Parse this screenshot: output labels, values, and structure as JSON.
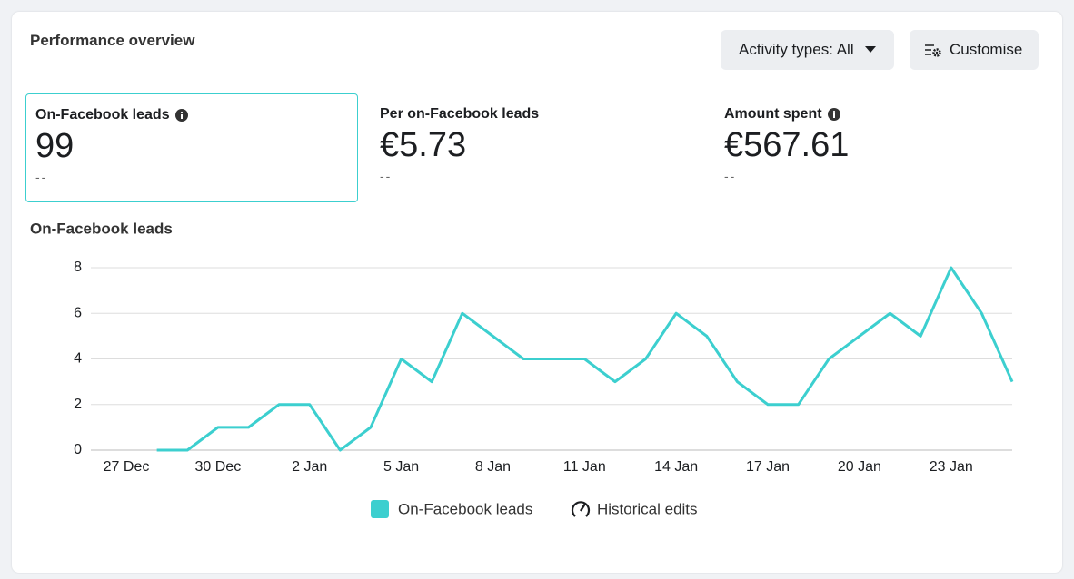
{
  "header": {
    "title": "Performance overview",
    "filter_button": "Activity types: All",
    "customise_button": "Customise"
  },
  "metrics": [
    {
      "label": "On-Facebook leads",
      "value": "99",
      "comparison": "--"
    },
    {
      "label": "Per on-Facebook leads",
      "value": "€5.73",
      "comparison": "--"
    },
    {
      "label": "Amount spent",
      "value": "€567.61",
      "comparison": "--"
    }
  ],
  "chart_data": {
    "type": "line",
    "title": "On-Facebook leads",
    "categories": [
      "27 Dec",
      null,
      null,
      "30 Dec",
      null,
      null,
      "2 Jan",
      null,
      null,
      "5 Jan",
      null,
      null,
      "8 Jan",
      null,
      null,
      "11 Jan",
      null,
      null,
      "14 Jan",
      null,
      null,
      "17 Jan",
      null,
      null,
      "20 Jan",
      null,
      null,
      "23 Jan",
      null,
      null
    ],
    "series": [
      {
        "name": "On-Facebook leads",
        "color": "#3ccfcf",
        "values": [
          null,
          0,
          0,
          1,
          1,
          2,
          2,
          0,
          1,
          4,
          3,
          6,
          5,
          4,
          4,
          4,
          3,
          4,
          6,
          5,
          3,
          2,
          2,
          4,
          5,
          6,
          5,
          8,
          6,
          3
        ]
      }
    ],
    "ylim": [
      0,
      8
    ],
    "yticks": [
      0,
      2,
      4,
      6,
      8
    ],
    "grid": true,
    "extra_legend": "Historical edits"
  }
}
